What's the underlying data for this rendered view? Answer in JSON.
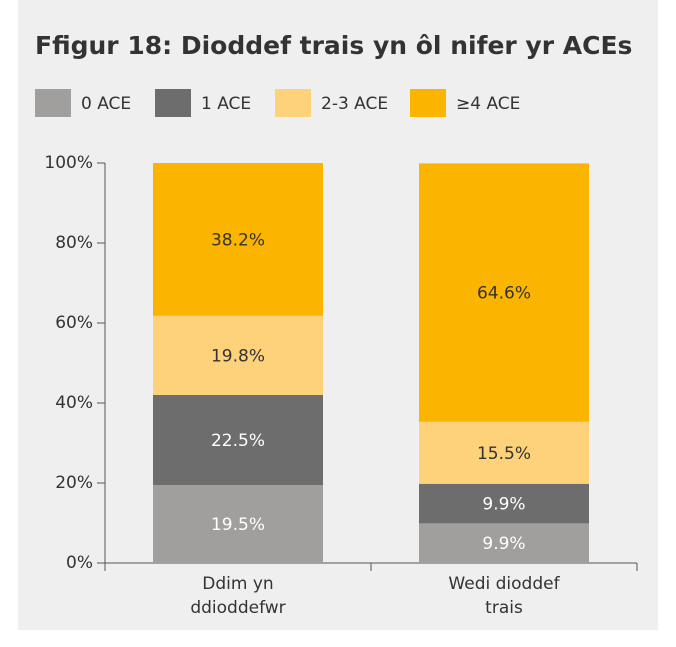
{
  "chart_data": {
    "type": "stacked_bar",
    "title": "Ffigur 18: Dioddef trais yn ôl nifer yr ACEs",
    "categories": [
      "Ddim yn ddioddefwr",
      "Wedi dioddef trais"
    ],
    "series": [
      {
        "name": "0 ACE",
        "color": "#a09f9e",
        "label_color": "#ffffff",
        "values": [
          19.5,
          9.9
        ],
        "value_labels": [
          "19.5%",
          "9.9%"
        ]
      },
      {
        "name": "1 ACE",
        "color": "#6d6d6d",
        "label_color": "#ffffff",
        "values": [
          22.5,
          9.9
        ],
        "value_labels": [
          "22.5%",
          "9.9%"
        ]
      },
      {
        "name": "2-3 ACE",
        "color": "#fdd27a",
        "label_color": "#333333",
        "values": [
          19.8,
          15.5
        ],
        "value_labels": [
          "19.8%",
          "15.5%"
        ]
      },
      {
        "name": "≥4 ACE",
        "color": "#fbb400",
        "label_color": "#333333",
        "values": [
          38.2,
          64.6
        ],
        "value_labels": [
          "38.2%",
          "64.6%"
        ]
      }
    ],
    "ylim": [
      0,
      100
    ],
    "yticks": [
      {
        "value": 0,
        "label": "0%"
      },
      {
        "value": 20,
        "label": "20%"
      },
      {
        "value": 40,
        "label": "40%"
      },
      {
        "value": 60,
        "label": "60%"
      },
      {
        "value": 80,
        "label": "80%"
      },
      {
        "value": 100,
        "label": "100%"
      }
    ],
    "legend": "top-left"
  }
}
